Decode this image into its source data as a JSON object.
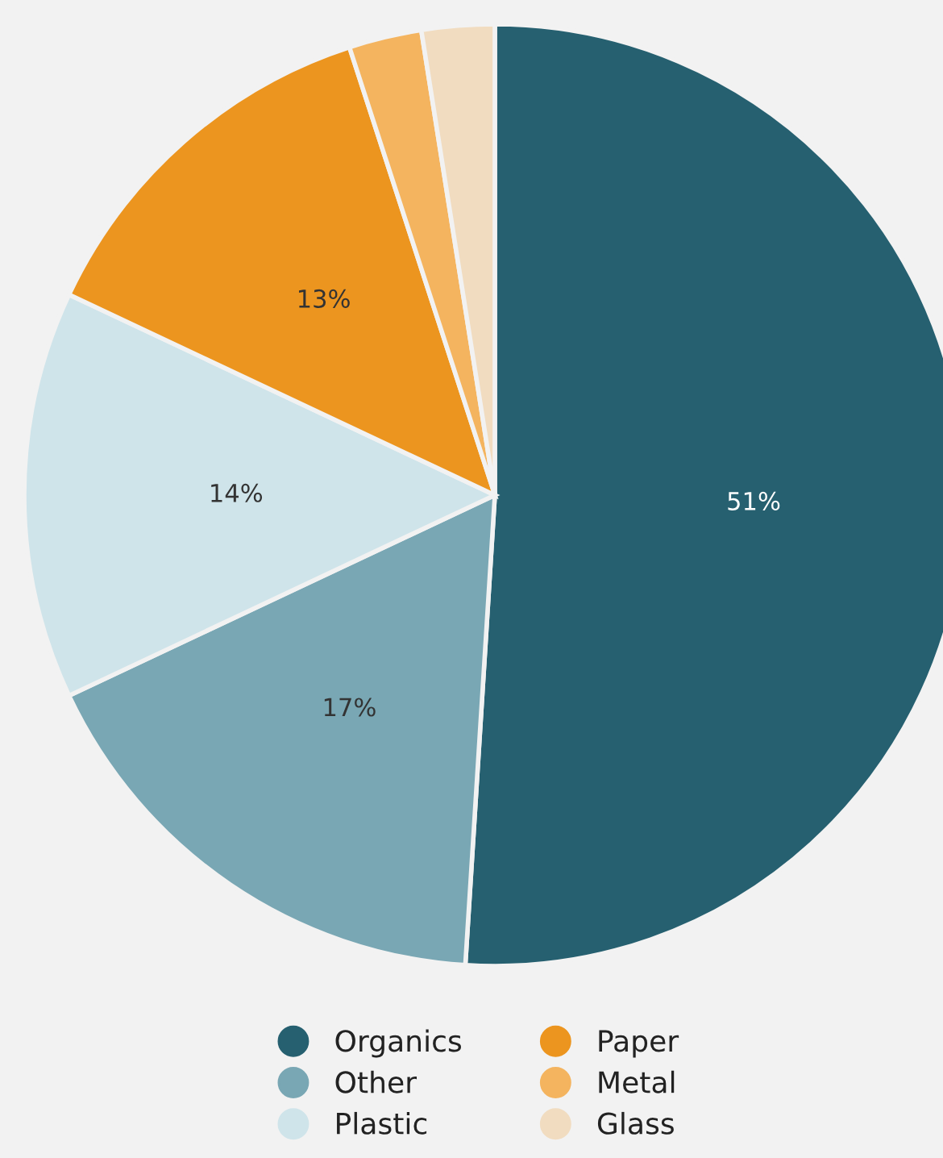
{
  "chart_data": {
    "type": "pie",
    "categories": [
      "Organics",
      "Other",
      "Plastic",
      "Paper",
      "Metal",
      "Glass"
    ],
    "values": [
      51,
      17,
      14,
      13,
      2.5,
      2.5
    ],
    "colors": [
      "#266070",
      "#79a7b4",
      "#cfe4ea",
      "#ec951f",
      "#f4b45f",
      "#f1dcc0"
    ],
    "value_labels": [
      "51%",
      "17%",
      "14%",
      "13%",
      null,
      null
    ],
    "legend": "bottom"
  }
}
